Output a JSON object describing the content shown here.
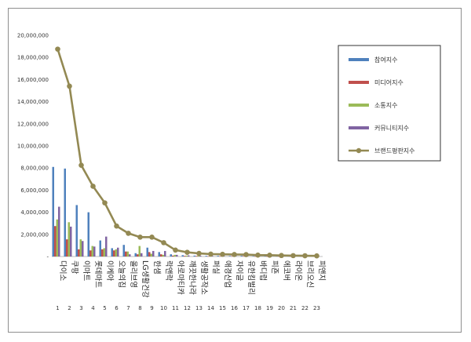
{
  "chart_data": {
    "type": "bar",
    "categories": [
      "다이소",
      "쿠팡",
      "이마트",
      "롯데마트",
      "이케아",
      "오늘의집",
      "올리브영",
      "LG생활건강",
      "한샘",
      "락앤락",
      "아로마티카",
      "깨끗한나라",
      "생활공작소",
      "퍼실",
      "애경산업",
      "자이글",
      "유한킴벌리",
      "바디럽",
      "피죤",
      "에코버",
      "라이온",
      "브리오신",
      "피앤지"
    ],
    "ranks": [
      "1",
      "2",
      "3",
      "4",
      "5",
      "6",
      "7",
      "8",
      "9",
      "10",
      "11",
      "12",
      "13",
      "14",
      "15",
      "16",
      "17",
      "18",
      "19",
      "20",
      "21",
      "22",
      "23"
    ],
    "ylim": [
      0,
      20000000
    ],
    "yticks": [
      "20,000,000",
      "18,000,000",
      "16,000,000",
      "14,000,000",
      "12,000,000",
      "10,000,000",
      "8,000,000",
      "6,000,000",
      "4,000,000",
      "2,000,000",
      "-"
    ],
    "ytick_values": [
      20000000,
      18000000,
      16000000,
      14000000,
      12000000,
      10000000,
      8000000,
      6000000,
      4000000,
      2000000,
      0
    ],
    "legend_position": "right",
    "series": [
      {
        "name": "참여지수",
        "kind": "bar",
        "color": "#4f81bd",
        "values": [
          8100000,
          7950000,
          4650000,
          4000000,
          1450000,
          750000,
          1050000,
          300000,
          800000,
          400000,
          200000,
          120000,
          80000,
          60000,
          60000,
          50000,
          60000,
          40000,
          30000,
          30000,
          25000,
          20000,
          20000
        ]
      },
      {
        "name": "미디어지수",
        "kind": "bar",
        "color": "#c0504d",
        "values": [
          2750000,
          1550000,
          650000,
          550000,
          650000,
          550000,
          450000,
          200000,
          400000,
          200000,
          80000,
          60000,
          50000,
          30000,
          30000,
          30000,
          40000,
          20000,
          20000,
          15000,
          10000,
          10000,
          10000
        ]
      },
      {
        "name": "소통지수",
        "kind": "bar",
        "color": "#9bbb59",
        "values": [
          3350000,
          3100000,
          1550000,
          950000,
          750000,
          650000,
          450000,
          950000,
          250000,
          150000,
          150000,
          80000,
          80000,
          50000,
          50000,
          60000,
          40000,
          30000,
          30000,
          20000,
          20000,
          15000,
          15000
        ]
      },
      {
        "name": "커뮤니티지수",
        "kind": "bar",
        "color": "#8064a2",
        "values": [
          4500000,
          2700000,
          1400000,
          900000,
          1800000,
          800000,
          200000,
          300000,
          500000,
          500000,
          150000,
          100000,
          70000,
          70000,
          50000,
          50000,
          40000,
          40000,
          30000,
          20000,
          20000,
          20000,
          15000
        ]
      },
      {
        "name": "브랜드평판지수",
        "kind": "line",
        "color": "#938953",
        "values": [
          18750000,
          15400000,
          8250000,
          6350000,
          4850000,
          2750000,
          2100000,
          1750000,
          1750000,
          1250000,
          580000,
          380000,
          280000,
          220000,
          200000,
          180000,
          170000,
          130000,
          120000,
          90000,
          80000,
          70000,
          60000
        ]
      }
    ]
  }
}
